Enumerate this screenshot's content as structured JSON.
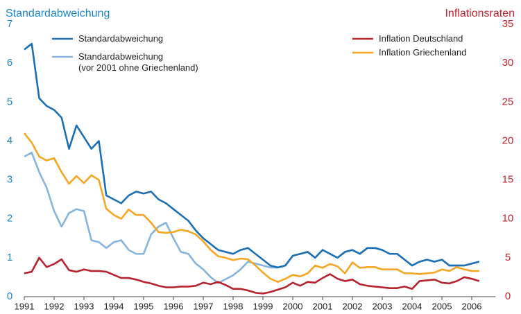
{
  "chart_data": {
    "type": "line",
    "y_label": "Standardabweichung",
    "y2_label": "Inflationsraten",
    "xlim": [
      1991,
      2006.8
    ],
    "xticks": [
      1991,
      1992,
      1993,
      1994,
      1995,
      1996,
      1997,
      1998,
      1999,
      2000,
      2001,
      2002,
      2003,
      2004,
      2005,
      2006
    ],
    "ylim": [
      0,
      7
    ],
    "yticks": [
      0,
      1,
      2,
      3,
      4,
      5,
      6,
      7
    ],
    "y2lim": [
      0,
      35
    ],
    "y2ticks": [
      0,
      5,
      10,
      15,
      20,
      25,
      30,
      35
    ],
    "x": [
      1991,
      1991.25,
      1991.5,
      1991.75,
      1992,
      1992.25,
      1992.5,
      1992.75,
      1993,
      1993.25,
      1993.5,
      1993.75,
      1994,
      1994.25,
      1994.5,
      1994.75,
      1995,
      1995.25,
      1995.5,
      1995.75,
      1996,
      1996.25,
      1996.5,
      1996.75,
      1997,
      1997.25,
      1997.5,
      1997.75,
      1998,
      1998.25,
      1998.5,
      1998.75,
      1999,
      1999.25,
      1999.5,
      1999.75,
      2000,
      2000.25,
      2000.5,
      2000.75,
      2001,
      2001.25,
      2001.5,
      2001.75,
      2002,
      2002.25,
      2002.5,
      2002.75,
      2003,
      2003.25,
      2003.5,
      2003.75,
      2004,
      2004.25,
      2004.5,
      2004.75,
      2005,
      2005.25,
      2005.5,
      2005.75,
      2006,
      2006.25
    ],
    "series": [
      {
        "name": "Standardabweichung",
        "color": "#1a6fb5",
        "axis": "y",
        "values": [
          6.35,
          6.5,
          5.1,
          4.9,
          4.8,
          4.6,
          3.8,
          4.4,
          4.1,
          3.8,
          4.0,
          2.6,
          2.5,
          2.4,
          2.6,
          2.7,
          2.65,
          2.7,
          2.5,
          2.4,
          2.25,
          2.1,
          1.95,
          1.7,
          1.5,
          1.35,
          1.2,
          1.15,
          1.1,
          1.2,
          1.25,
          1.1,
          0.95,
          0.8,
          0.75,
          0.8,
          1.05,
          1.1,
          1.15,
          1.0,
          1.2,
          1.1,
          1.0,
          1.15,
          1.2,
          1.1,
          1.25,
          1.25,
          1.2,
          1.1,
          1.1,
          0.95,
          0.8,
          0.9,
          0.95,
          0.9,
          0.95,
          0.8,
          0.8,
          0.8,
          0.85,
          0.9
        ]
      },
      {
        "name": "Standardabweichung\n(vor 2001 ohne Griechenland)",
        "color": "#86b4dc",
        "axis": "y",
        "values": [
          3.6,
          3.7,
          3.2,
          2.8,
          2.2,
          1.8,
          2.15,
          2.25,
          2.2,
          1.45,
          1.4,
          1.25,
          1.4,
          1.45,
          1.2,
          1.1,
          1.1,
          1.6,
          1.8,
          1.9,
          1.5,
          1.15,
          1.1,
          0.85,
          0.7,
          0.5,
          0.35,
          0.45,
          0.55,
          0.7,
          0.9,
          0.85,
          0.8,
          0.75,
          0.75,
          0.8,
          1.05,
          1.1,
          1.15,
          1.0,
          1.2,
          1.1,
          1.0,
          1.15,
          1.2,
          1.1,
          1.25,
          1.25,
          1.2,
          1.1,
          1.1,
          0.95,
          0.8,
          0.9,
          0.95,
          0.9,
          0.95,
          0.8,
          0.8,
          0.8,
          0.85,
          0.9
        ]
      },
      {
        "name": "Inflation Deutschland",
        "color": "#b5232f",
        "axis": "y2",
        "values": [
          3.0,
          3.2,
          5.0,
          3.8,
          4.2,
          4.8,
          3.4,
          3.2,
          3.5,
          3.3,
          3.3,
          3.2,
          2.8,
          2.4,
          2.4,
          2.2,
          1.9,
          1.7,
          1.4,
          1.2,
          1.2,
          1.3,
          1.3,
          1.4,
          1.8,
          1.6,
          1.9,
          1.5,
          1.0,
          1.0,
          0.8,
          0.5,
          0.4,
          0.6,
          0.9,
          1.2,
          1.8,
          1.4,
          1.9,
          1.8,
          2.4,
          2.9,
          2.3,
          2.0,
          2.2,
          1.6,
          1.4,
          1.3,
          1.2,
          1.1,
          1.1,
          1.3,
          1.0,
          2.0,
          2.1,
          2.2,
          1.8,
          1.7,
          2.0,
          2.5,
          2.3,
          2.0
        ]
      },
      {
        "name": "Inflation Griechenland",
        "color": "#f5a623",
        "axis": "y2",
        "values": [
          21.0,
          19.8,
          18.0,
          17.5,
          17.8,
          16.0,
          14.5,
          15.5,
          14.6,
          15.6,
          15.0,
          11.3,
          10.5,
          10.0,
          11.2,
          10.5,
          10.5,
          9.5,
          8.3,
          8.2,
          8.3,
          8.6,
          8.4,
          8.0,
          7.1,
          6.0,
          5.2,
          5.0,
          4.7,
          4.9,
          4.8,
          4.0,
          3.1,
          2.3,
          1.9,
          2.3,
          2.8,
          2.6,
          3.0,
          4.0,
          3.7,
          4.2,
          3.9,
          3.0,
          4.4,
          3.7,
          3.8,
          3.8,
          3.5,
          3.5,
          3.5,
          3.0,
          3.0,
          2.9,
          3.0,
          3.1,
          3.5,
          3.3,
          3.8,
          3.5,
          3.3,
          3.3
        ]
      }
    ]
  }
}
